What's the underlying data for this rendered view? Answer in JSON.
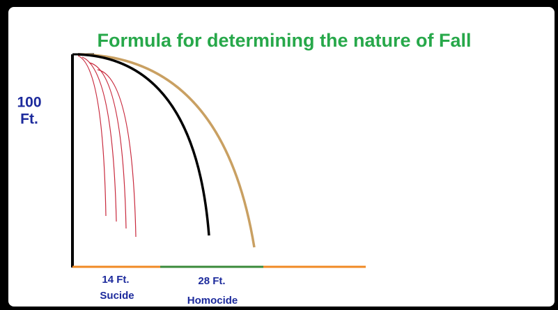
{
  "title": "Formula for determining the nature of Fall",
  "height": {
    "value": "100",
    "unit": "Ft."
  },
  "distances": [
    {
      "distance": "14 Ft.",
      "label": "Sucide"
    },
    {
      "distance": "28 Ft.",
      "label": "Homocide"
    }
  ]
}
